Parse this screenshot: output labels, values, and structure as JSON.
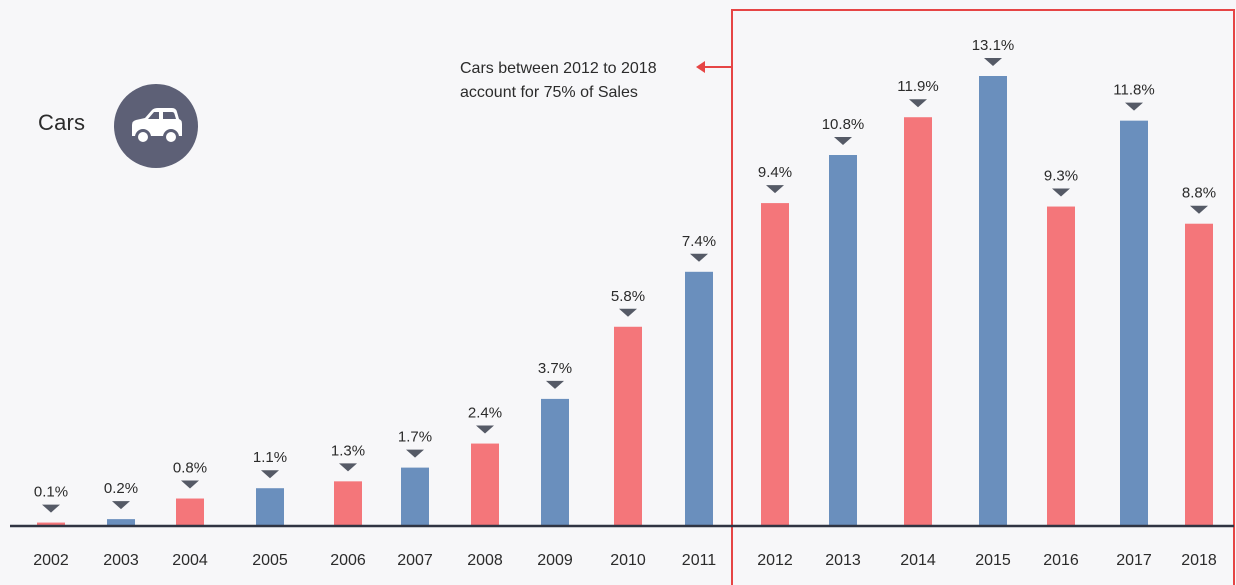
{
  "category": {
    "label": "Cars",
    "icon": "car-icon"
  },
  "annotation": {
    "line1": "Cars between 2012 to 2018",
    "line2": "account for 75% of Sales",
    "arrow": "arrow-left-icon"
  },
  "colors": {
    "red": "#f4767a",
    "blue": "#6a8fbd",
    "marker": "#555a66",
    "baseline": "#2f3442",
    "highlight_box": "#e64545",
    "icon_bg": "#5d6076"
  },
  "chart_data": {
    "type": "bar",
    "categories": [
      "2002",
      "2003",
      "2004",
      "2005",
      "2006",
      "2007",
      "2008",
      "2009",
      "2010",
      "2011",
      "2012",
      "2013",
      "2014",
      "2015",
      "2016",
      "2017",
      "2018"
    ],
    "values": [
      0.1,
      0.2,
      0.8,
      1.1,
      1.3,
      1.7,
      2.4,
      3.7,
      5.8,
      7.4,
      9.4,
      10.8,
      11.9,
      13.1,
      9.3,
      11.8,
      8.8
    ],
    "data_labels": [
      "0.1%",
      "0.2%",
      "0.8%",
      "1.1%",
      "1.3%",
      "1.7%",
      "2.4%",
      "3.7%",
      "5.8%",
      "7.4%",
      "9.4%",
      "10.8%",
      "11.9%",
      "13.1%",
      "9.3%",
      "11.8%",
      "8.8%"
    ],
    "bar_colors": [
      "red",
      "blue",
      "red",
      "blue",
      "red",
      "blue",
      "red",
      "blue",
      "red",
      "blue",
      "red",
      "blue",
      "red",
      "blue",
      "red",
      "blue",
      "red"
    ],
    "highlight_range": [
      "2012",
      "2018"
    ],
    "title": "",
    "xlabel": "",
    "ylabel": "",
    "ylim": [
      0,
      13.1
    ],
    "grid": false,
    "legend": "none"
  }
}
